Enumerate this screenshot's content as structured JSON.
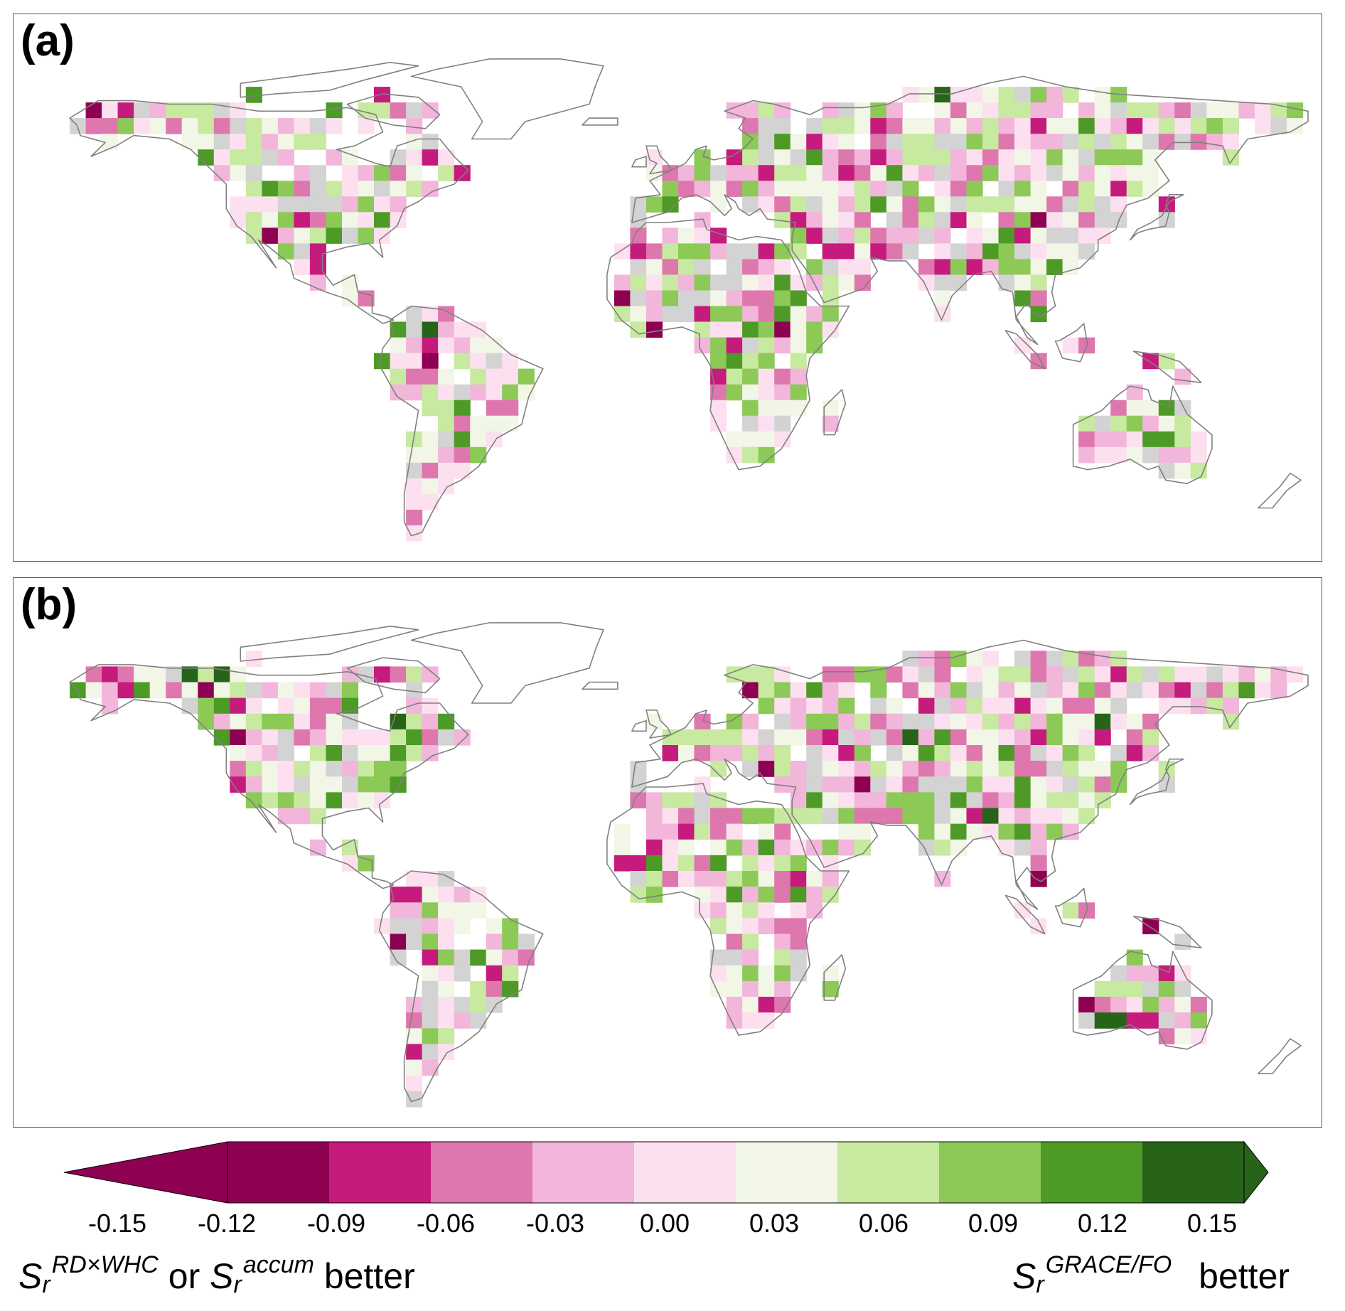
{
  "panels": [
    {
      "label": "(a)",
      "seed": 11
    },
    {
      "label": "(b)",
      "seed": 37
    }
  ],
  "colorbar": {
    "ticks": [
      "-0.15",
      "-0.12",
      "-0.09",
      "-0.06",
      "-0.03",
      "0.00",
      "0.03",
      "0.06",
      "0.09",
      "0.12",
      "0.15"
    ],
    "colors": [
      "#8e0152",
      "#c51b7d",
      "#de77ae",
      "#f1b6da",
      "#fde0ef",
      "#f2f6e6",
      "#c7e9a0",
      "#8cc957",
      "#4d9a26",
      "#276419"
    ],
    "extend_low_color": "#8e0152",
    "extend_high_color": "#276419",
    "no_data_color": "#d3d3d3",
    "coastline_color": "#808080"
  },
  "legend": {
    "left": {
      "s1": "S",
      "sub1": "r",
      "sup1": "RD×WHC",
      "or": "or",
      "s2": "S",
      "sub2": "r",
      "sup2": "accum",
      "better": "better"
    },
    "right": {
      "s": "S",
      "sub": "r",
      "sup": "GRACE/FO",
      "better": "better"
    }
  }
}
